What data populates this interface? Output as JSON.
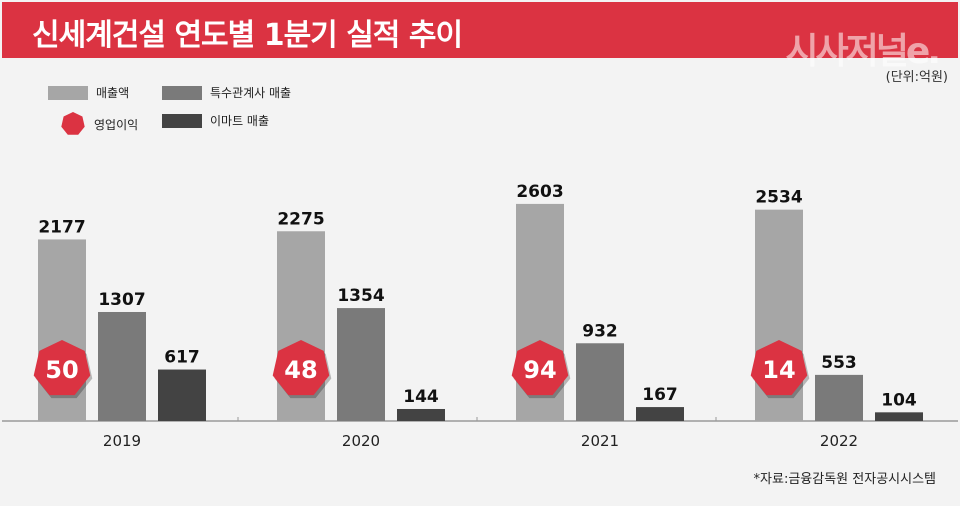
{
  "header": {
    "title": "신세계건설 연도별 1분기 실적 추이",
    "logo": "시사저널e."
  },
  "unit_label": "(단위:억원)",
  "source": "*자료:금융감독원 전자공시시스템",
  "chart_data": {
    "type": "bar",
    "title": "신세계건설 연도별 1분기 실적 추이",
    "categories": [
      "2019",
      "2020",
      "2021",
      "2022"
    ],
    "series": [
      {
        "name": "매출액",
        "color": "#a6a6a6",
        "values": [
          2177,
          2275,
          2603,
          2534
        ]
      },
      {
        "name": "특수관계사 매출",
        "color": "#7a7a7a",
        "values": [
          1307,
          1354,
          932,
          553
        ]
      },
      {
        "name": "이마트 매출",
        "color": "#434343",
        "values": [
          617,
          144,
          167,
          104
        ]
      }
    ],
    "markers": {
      "name": "영업이익",
      "color": "#db3342",
      "values": [
        50,
        48,
        94,
        14
      ]
    },
    "ylim": [
      0,
      3000
    ],
    "legend": "top-left"
  }
}
